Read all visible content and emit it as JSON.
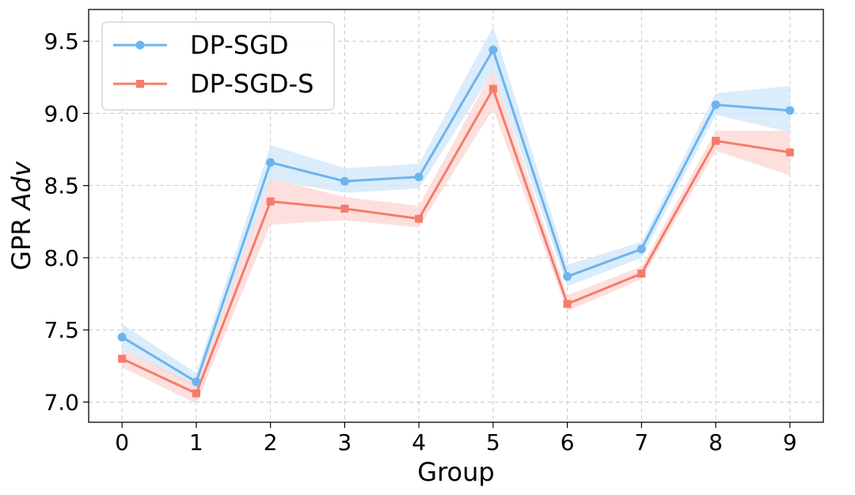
{
  "chart_data": {
    "type": "line",
    "title": "",
    "xlabel": "Group",
    "ylabel_prefix": "GPR ",
    "ylabel_italic": "Adv",
    "x": [
      0,
      1,
      2,
      3,
      4,
      5,
      6,
      7,
      8,
      9
    ],
    "x_tick_labels": [
      "0",
      "1",
      "2",
      "3",
      "4",
      "5",
      "6",
      "7",
      "8",
      "9"
    ],
    "y_ticks": [
      7.0,
      7.5,
      8.0,
      8.5,
      9.0,
      9.5
    ],
    "y_tick_labels": [
      "7.0",
      "7.5",
      "8.0",
      "8.5",
      "9.0",
      "9.5"
    ],
    "xlim": [
      -0.45,
      9.45
    ],
    "ylim": [
      6.86,
      9.72
    ],
    "grid": true,
    "legend_position": "top-left",
    "series": [
      {
        "name": "DP-SGD",
        "color": "#6cb4ee",
        "band_color": "#cfe5fa",
        "marker": "circle",
        "values": [
          7.45,
          7.14,
          8.66,
          8.53,
          8.56,
          9.44,
          7.87,
          8.06,
          9.06,
          9.02
        ],
        "upper": [
          7.54,
          7.2,
          8.78,
          8.62,
          8.65,
          9.6,
          7.95,
          8.11,
          9.14,
          9.19
        ],
        "lower": [
          7.37,
          7.09,
          8.54,
          8.45,
          8.48,
          9.29,
          7.8,
          8.0,
          8.99,
          8.87
        ]
      },
      {
        "name": "DP-SGD-S",
        "color": "#f47c6d",
        "band_color": "#fcd5d1",
        "marker": "square",
        "values": [
          7.3,
          7.06,
          8.39,
          8.34,
          8.27,
          9.17,
          7.68,
          7.89,
          8.81,
          8.73
        ],
        "upper": [
          7.37,
          7.12,
          8.55,
          8.42,
          8.36,
          9.3,
          7.74,
          7.94,
          8.88,
          8.88
        ],
        "lower": [
          7.24,
          6.99,
          8.23,
          8.26,
          8.21,
          9.03,
          7.63,
          7.85,
          8.74,
          8.57
        ]
      }
    ]
  }
}
